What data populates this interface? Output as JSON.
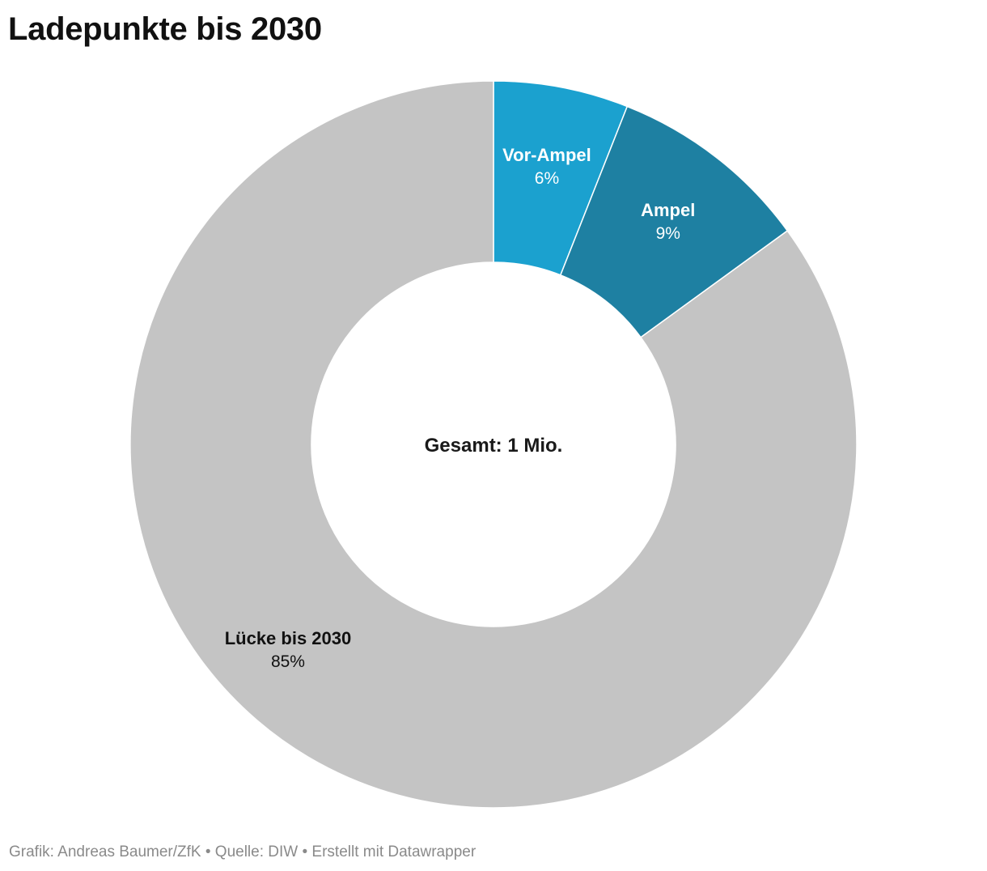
{
  "title": "Ladepunkte bis 2030",
  "center_label": "Gesamt: 1 Mio.",
  "footer": "Grafik: Andreas Baumer/ZfK • Quelle: DIW • Erstellt mit Datawrapper",
  "chart_data": {
    "type": "pie",
    "donut": true,
    "title": "Ladepunkte bis 2030",
    "center_label": "Gesamt: 1 Mio.",
    "slices": [
      {
        "name": "Vor-Ampel",
        "value": 6,
        "label": "6%",
        "color": "#1ba1cf",
        "text_color": "#ffffff"
      },
      {
        "name": "Ampel",
        "value": 9,
        "label": "9%",
        "color": "#1e80a2",
        "text_color": "#ffffff"
      },
      {
        "name": "Lücke bis 2030",
        "value": 85,
        "label": "85%",
        "color": "#c4c4c4",
        "text_color": "#111111"
      }
    ]
  }
}
